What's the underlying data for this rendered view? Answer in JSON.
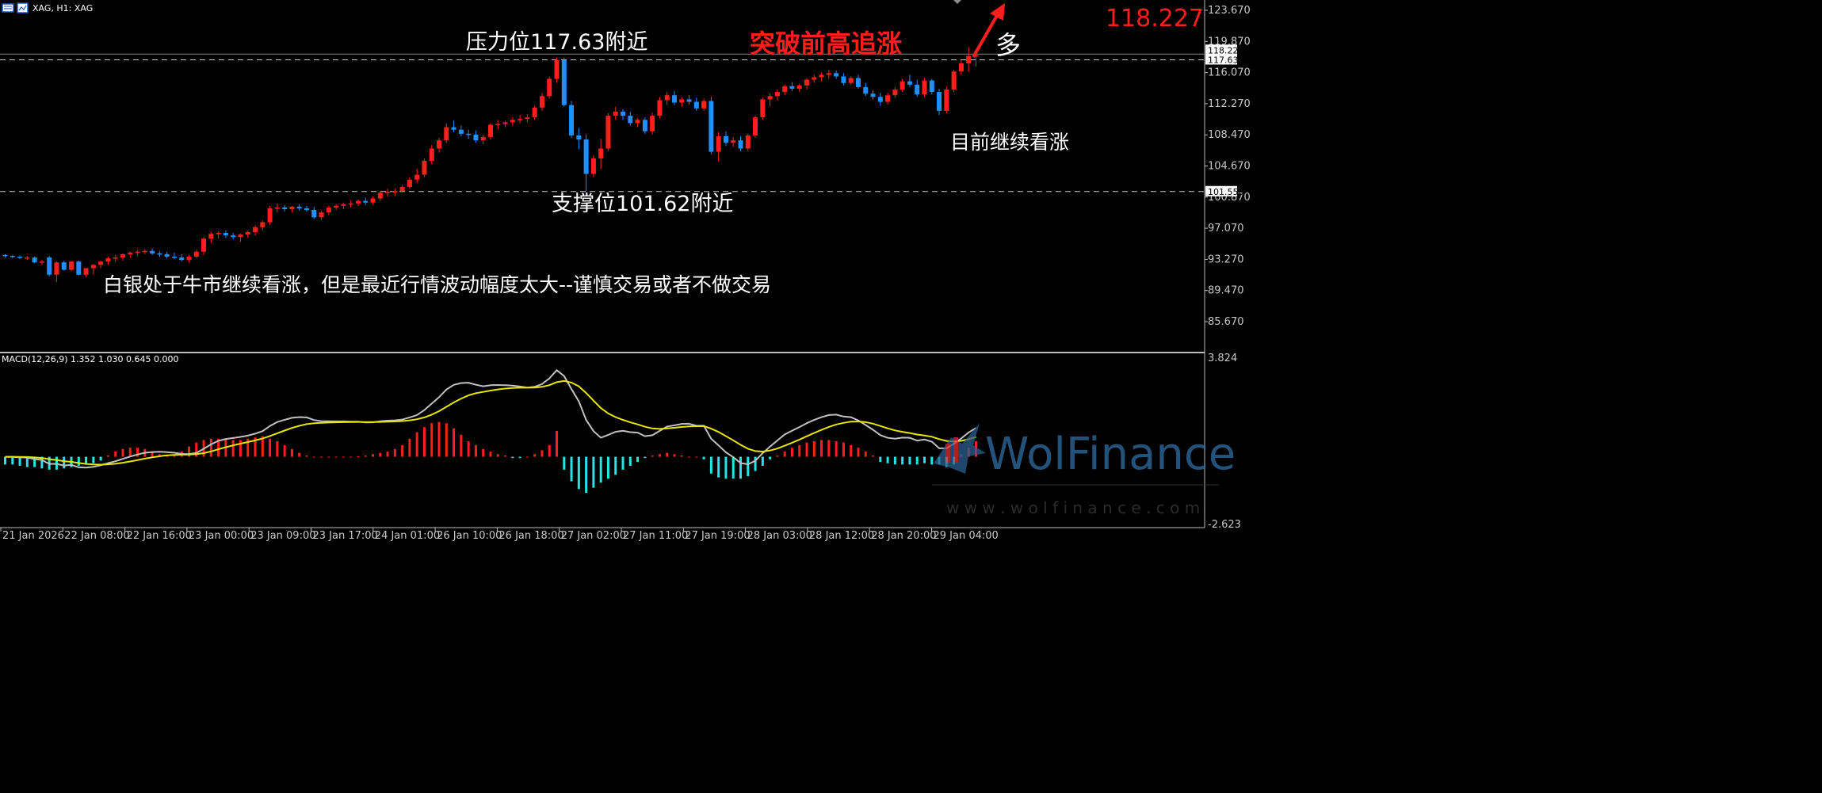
{
  "header": {
    "symbol_title": "XAG, H1: XAG",
    "current_price": "118.227",
    "price_color": "#ff1e1e"
  },
  "annotations": {
    "resistance_text": "压力位117.63附近",
    "support_text": "支撑位101.62附近",
    "breakout_text": "突破前高追涨",
    "long_text": "多",
    "outlook_text": "目前继续看涨",
    "summary_text": "白银处于牛市继续看涨，但是最近行情波动幅度太大--谨慎交易或者不做交易"
  },
  "watermark": {
    "brand": "WolFinance",
    "url": "w w w . w o l f i n a n c e . c o m"
  },
  "chart_data": [
    {
      "type": "candlestick",
      "title": "XAG, H1: XAG",
      "y_ticks": [
        "123.670",
        "119.870",
        "116.070",
        "112.270",
        "108.470",
        "104.670",
        "100.870",
        "97.070",
        "93.270",
        "89.470",
        "85.670"
      ],
      "ylim": [
        81.9,
        124.7
      ],
      "price_labels": [
        {
          "value": 118.227,
          "text": "118.227"
        },
        {
          "value": 117.63,
          "text": "117.630"
        },
        {
          "value": 101.55,
          "text": "101.550"
        }
      ],
      "levels": {
        "resistance": 117.63,
        "support": 101.55,
        "current": 118.227
      },
      "x_ticks": [
        "21 Jan 2026",
        "22 Jan 08:00",
        "22 Jan 16:00",
        "23 Jan 00:00",
        "23 Jan 09:00",
        "23 Jan 17:00",
        "24 Jan 01:00",
        "26 Jan 10:00",
        "26 Jan 18:00",
        "27 Jan 02:00",
        "27 Jan 11:00",
        "27 Jan 19:00",
        "28 Jan 03:00",
        "28 Jan 12:00",
        "28 Jan 20:00",
        "29 Jan 04:00"
      ],
      "up_color": "#ff1e1e",
      "down_color": "#1e90ff",
      "candles": [
        [
          93.8,
          93.9,
          93.5,
          93.7
        ],
        [
          93.7,
          93.8,
          93.4,
          93.6
        ],
        [
          93.6,
          93.7,
          93.3,
          93.5
        ],
        [
          93.5,
          93.7,
          93.2,
          93.5
        ],
        [
          93.5,
          93.6,
          92.8,
          92.9
        ],
        [
          92.9,
          93.2,
          92.6,
          93.0
        ],
        [
          93.5,
          93.7,
          91.2,
          91.4
        ],
        [
          91.4,
          93.0,
          90.5,
          92.9
        ],
        [
          92.9,
          93.1,
          91.9,
          92.0
        ],
        [
          92.0,
          93.1,
          91.8,
          93.0
        ],
        [
          93.0,
          93.1,
          91.3,
          91.4
        ],
        [
          91.4,
          92.2,
          91.1,
          92.2
        ],
        [
          92.2,
          92.7,
          91.4,
          92.6
        ],
        [
          92.6,
          93.1,
          92.2,
          93.0
        ],
        [
          93.0,
          93.6,
          92.6,
          93.4
        ],
        [
          93.4,
          93.8,
          93.0,
          93.5
        ],
        [
          93.5,
          94.0,
          93.1,
          93.9
        ],
        [
          93.9,
          94.2,
          93.5,
          94.1
        ],
        [
          94.1,
          94.4,
          93.7,
          94.2
        ],
        [
          94.2,
          94.5,
          93.9,
          94.3
        ],
        [
          94.3,
          94.6,
          93.8,
          94.0
        ],
        [
          94.0,
          94.3,
          93.6,
          93.9
        ],
        [
          93.9,
          94.2,
          93.4,
          93.6
        ],
        [
          93.6,
          94.1,
          93.3,
          93.5
        ],
        [
          93.5,
          93.9,
          93.0,
          93.2
        ],
        [
          93.2,
          93.8,
          92.9,
          93.6
        ],
        [
          93.6,
          94.4,
          93.4,
          94.2
        ],
        [
          94.2,
          96.0,
          93.8,
          95.8
        ],
        [
          95.8,
          96.6,
          95.3,
          96.4
        ],
        [
          96.4,
          96.7,
          95.8,
          96.5
        ],
        [
          96.5,
          96.8,
          95.9,
          96.2
        ],
        [
          96.2,
          96.5,
          95.7,
          96.0
        ],
        [
          96.0,
          96.4,
          95.4,
          96.3
        ],
        [
          96.3,
          96.8,
          95.9,
          96.6
        ],
        [
          96.6,
          97.4,
          96.2,
          97.2
        ],
        [
          97.2,
          98.0,
          96.8,
          97.8
        ],
        [
          97.8,
          99.8,
          97.5,
          99.5
        ],
        [
          99.5,
          100.1,
          99.0,
          99.6
        ],
        [
          99.6,
          99.9,
          99.1,
          99.4
        ],
        [
          99.4,
          99.8,
          99.0,
          99.7
        ],
        [
          99.7,
          100.0,
          99.2,
          99.5
        ],
        [
          99.5,
          99.8,
          99.1,
          99.3
        ],
        [
          99.3,
          99.7,
          98.2,
          98.4
        ],
        [
          98.4,
          99.2,
          98.1,
          99.0
        ],
        [
          99.0,
          99.8,
          98.7,
          99.6
        ],
        [
          99.6,
          100.0,
          99.3,
          99.8
        ],
        [
          99.8,
          100.2,
          99.4,
          100.0
        ],
        [
          100.0,
          100.4,
          99.6,
          100.1
        ],
        [
          100.1,
          100.6,
          99.8,
          100.4
        ],
        [
          100.4,
          100.8,
          99.9,
          100.2
        ],
        [
          100.2,
          100.9,
          100.0,
          100.7
        ],
        [
          100.7,
          101.6,
          100.4,
          101.4
        ],
        [
          101.4,
          101.9,
          100.9,
          101.5
        ],
        [
          101.5,
          101.9,
          101.0,
          101.6
        ],
        [
          101.6,
          102.3,
          101.4,
          102.1
        ],
        [
          102.1,
          103.3,
          101.9,
          103.0
        ],
        [
          103.0,
          104.3,
          102.6,
          103.6
        ],
        [
          103.6,
          105.6,
          103.3,
          105.3
        ],
        [
          105.3,
          107.2,
          104.9,
          106.8
        ],
        [
          106.8,
          108.1,
          106.3,
          107.8
        ],
        [
          107.8,
          109.9,
          107.5,
          109.4
        ],
        [
          109.4,
          110.2,
          108.8,
          109.1
        ],
        [
          109.1,
          109.6,
          108.3,
          108.6
        ],
        [
          108.6,
          109.1,
          108.0,
          108.5
        ],
        [
          108.5,
          109.0,
          107.5,
          107.8
        ],
        [
          107.8,
          108.5,
          107.3,
          108.2
        ],
        [
          108.2,
          109.9,
          107.9,
          109.7
        ],
        [
          109.7,
          110.3,
          109.2,
          109.8
        ],
        [
          109.8,
          110.2,
          109.4,
          110.0
        ],
        [
          110.0,
          110.6,
          109.6,
          110.3
        ],
        [
          110.3,
          110.9,
          109.9,
          110.4
        ],
        [
          110.4,
          111.0,
          110.0,
          110.6
        ],
        [
          110.6,
          112.0,
          110.3,
          111.8
        ],
        [
          111.8,
          113.6,
          111.4,
          113.2
        ],
        [
          113.2,
          115.6,
          112.9,
          115.3
        ],
        [
          115.3,
          117.9,
          114.8,
          117.6
        ],
        [
          117.6,
          117.9,
          111.9,
          112.1
        ],
        [
          112.1,
          112.6,
          108.1,
          108.4
        ],
        [
          108.4,
          109.3,
          106.7,
          107.9
        ],
        [
          107.9,
          108.5,
          101.6,
          103.7
        ],
        [
          103.7,
          106.0,
          103.3,
          105.6
        ],
        [
          105.6,
          108.0,
          104.3,
          106.8
        ],
        [
          106.8,
          111.1,
          106.5,
          110.8
        ],
        [
          110.8,
          111.9,
          110.3,
          111.3
        ],
        [
          111.3,
          111.6,
          110.3,
          110.8
        ],
        [
          110.8,
          111.3,
          109.6,
          109.9
        ],
        [
          109.9,
          110.5,
          109.4,
          110.3
        ],
        [
          110.3,
          110.6,
          108.6,
          108.9
        ],
        [
          108.9,
          111.2,
          108.5,
          110.8
        ],
        [
          110.8,
          113.1,
          110.5,
          112.7
        ],
        [
          112.7,
          113.7,
          112.1,
          113.3
        ],
        [
          113.3,
          113.8,
          112.1,
          112.4
        ],
        [
          112.4,
          113.1,
          111.9,
          112.8
        ],
        [
          112.8,
          113.3,
          112.2,
          112.5
        ],
        [
          112.5,
          113.0,
          111.4,
          111.7
        ],
        [
          111.7,
          112.9,
          111.4,
          112.6
        ],
        [
          112.6,
          113.1,
          106.1,
          106.4
        ],
        [
          106.4,
          108.8,
          105.2,
          108.3
        ],
        [
          108.3,
          108.9,
          107.1,
          107.5
        ],
        [
          107.5,
          108.2,
          107.0,
          107.8
        ],
        [
          107.8,
          108.3,
          106.5,
          106.8
        ],
        [
          106.8,
          108.6,
          106.5,
          108.4
        ],
        [
          108.4,
          110.8,
          108.1,
          110.6
        ],
        [
          110.6,
          113.0,
          110.3,
          112.8
        ],
        [
          112.8,
          113.5,
          112.0,
          113.2
        ],
        [
          113.2,
          114.0,
          112.7,
          113.7
        ],
        [
          113.7,
          114.6,
          113.3,
          114.4
        ],
        [
          114.4,
          114.9,
          113.8,
          114.1
        ],
        [
          114.1,
          114.7,
          113.7,
          114.5
        ],
        [
          114.5,
          115.4,
          114.0,
          115.2
        ],
        [
          115.2,
          115.8,
          114.8,
          115.5
        ],
        [
          115.5,
          116.1,
          115.0,
          115.8
        ],
        [
          115.8,
          116.4,
          115.3,
          116.0
        ],
        [
          116.0,
          116.3,
          115.3,
          115.6
        ],
        [
          115.6,
          116.0,
          114.5,
          114.8
        ],
        [
          114.8,
          115.6,
          114.6,
          115.4
        ],
        [
          115.4,
          115.8,
          114.1,
          114.3
        ],
        [
          114.3,
          114.8,
          113.2,
          113.5
        ],
        [
          113.5,
          113.9,
          112.8,
          113.1
        ],
        [
          113.1,
          113.6,
          112.0,
          112.5
        ],
        [
          112.5,
          113.6,
          112.2,
          113.3
        ],
        [
          113.3,
          114.3,
          113.0,
          114.0
        ],
        [
          114.0,
          115.3,
          113.7,
          115.0
        ],
        [
          115.0,
          115.8,
          114.3,
          114.6
        ],
        [
          114.6,
          115.2,
          113.1,
          113.4
        ],
        [
          113.4,
          115.4,
          113.1,
          115.1
        ],
        [
          115.1,
          115.3,
          113.4,
          113.7
        ],
        [
          113.7,
          114.1,
          110.9,
          111.4
        ],
        [
          111.4,
          114.3,
          111.1,
          114.0
        ],
        [
          114.0,
          116.4,
          113.7,
          116.2
        ],
        [
          116.2,
          117.6,
          115.8,
          117.2
        ],
        [
          117.2,
          119.2,
          116.2,
          118.1
        ],
        [
          118.1,
          118.9,
          116.8,
          118.2
        ]
      ]
    },
    {
      "type": "bar",
      "title": "MACD(12,26,9) 1.352 1.030 0.645 0.000",
      "y_ticks": [
        "3.824",
        "-2.623"
      ],
      "ylim": [
        -2.623,
        3.824
      ],
      "pos_color": "#ff1e1e",
      "neg_color": "#22e6e6",
      "histogram": [
        -0.3,
        -0.3,
        -0.35,
        -0.4,
        -0.4,
        -0.45,
        -0.5,
        -0.5,
        -0.45,
        -0.4,
        -0.35,
        -0.3,
        -0.25,
        -0.15,
        0.05,
        0.2,
        0.3,
        0.35,
        0.35,
        0.3,
        0.2,
        0.1,
        0.05,
        0.05,
        0.2,
        0.4,
        0.55,
        0.65,
        0.7,
        0.7,
        0.7,
        0.65,
        0.65,
        0.7,
        0.75,
        0.8,
        0.7,
        0.6,
        0.45,
        0.3,
        0.15,
        0.05,
        0.0,
        0.0,
        0.0,
        0.0,
        0.0,
        0.0,
        0.02,
        0.05,
        0.1,
        0.15,
        0.2,
        0.3,
        0.45,
        0.7,
        0.95,
        1.15,
        1.3,
        1.35,
        1.3,
        1.1,
        0.85,
        0.6,
        0.45,
        0.3,
        0.2,
        0.1,
        0.05,
        -0.05,
        -0.05,
        0.0,
        0.1,
        0.25,
        0.45,
        1.0,
        -0.5,
        -0.95,
        -1.25,
        -1.4,
        -1.2,
        -1.0,
        -0.85,
        -0.7,
        -0.5,
        -0.35,
        -0.2,
        -0.05,
        0.05,
        0.1,
        0.15,
        0.1,
        0.05,
        0.0,
        0.0,
        -0.1,
        -0.65,
        -0.8,
        -0.85,
        -0.85,
        -0.85,
        -0.75,
        -0.55,
        -0.35,
        -0.1,
        0.05,
        0.2,
        0.35,
        0.45,
        0.55,
        0.6,
        0.65,
        0.65,
        0.6,
        0.55,
        0.45,
        0.35,
        0.2,
        0.05,
        -0.2,
        -0.25,
        -0.3,
        -0.3,
        -0.3,
        -0.3,
        -0.25,
        -0.3,
        -0.3,
        -0.4,
        -0.3,
        0.1,
        0.35,
        0.6
      ]
    }
  ]
}
